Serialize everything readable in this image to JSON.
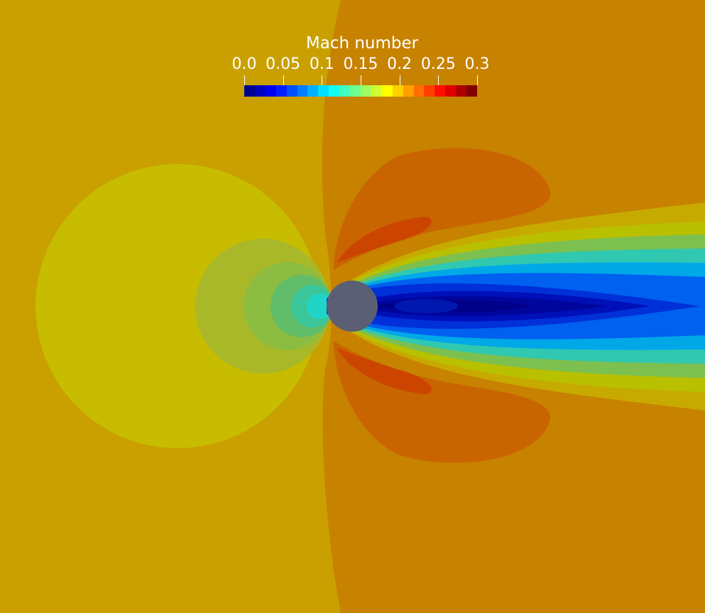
{
  "visualization": {
    "field": "Mach number",
    "colormap": "jet",
    "background_color": "#c9a000",
    "body_color": "#5a5f74"
  },
  "colorbar": {
    "title": "Mach number",
    "range": [
      0.0,
      0.3
    ],
    "tick_labels": [
      "0.0",
      "0.05",
      "0.1",
      "0.15",
      "0.2",
      "0.25",
      "0.3"
    ],
    "tick_values": [
      0.0,
      0.05,
      0.1,
      0.15,
      0.2,
      0.25,
      0.3
    ],
    "colors": [
      "#00008f",
      "#0000bf",
      "#0000ef",
      "#001fff",
      "#004fff",
      "#007fff",
      "#00afff",
      "#00dfff",
      "#10ffef",
      "#40ffbf",
      "#70ff8f",
      "#9fff60",
      "#cfff30",
      "#ffff00",
      "#ffcf00",
      "#ff9f00",
      "#ff6f00",
      "#ff3f00",
      "#ff0f00",
      "#df0000",
      "#af0000",
      "#800000"
    ]
  }
}
